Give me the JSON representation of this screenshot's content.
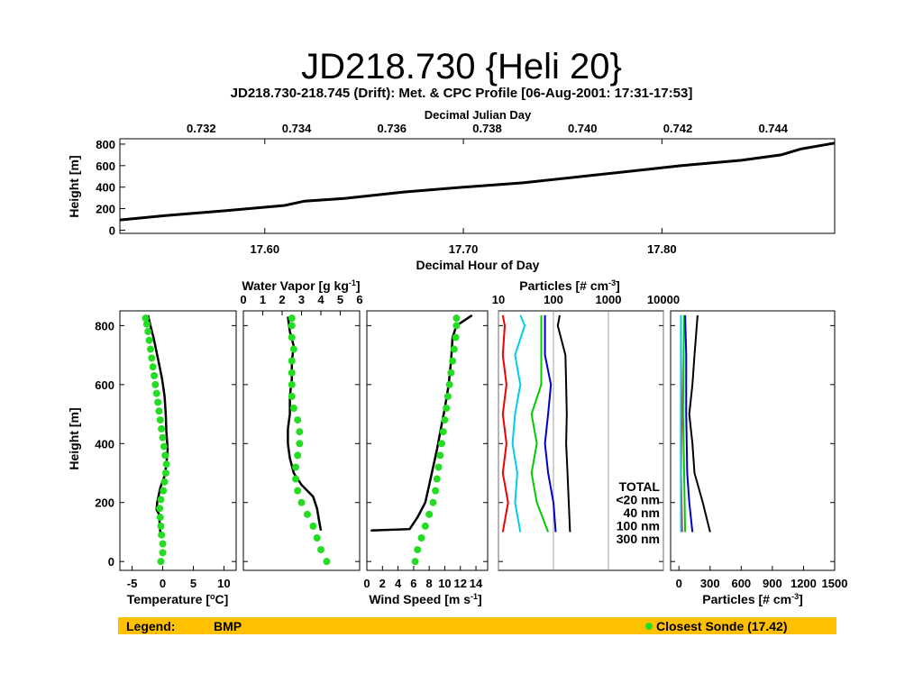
{
  "slide_title": "JD218.730 {Heli 20}",
  "figure_title": "JD218.730-218.745 (Drift): Met. & CPC Profile [06-Aug-2001: 17:31-17:53]",
  "legend_bar": {
    "label": "Legend:",
    "series": "BMP",
    "sonde": "Closest Sonde (17.42)",
    "bar_color": "#ffc000",
    "sonde_color": "#22dd22"
  },
  "chart_data": [
    {
      "type": "line",
      "name": "time-height",
      "xlabel": "Decimal Hour of Day",
      "x2label": "Decimal Julian Day",
      "ylabel": "Height [m]",
      "xlim": [
        17.527,
        17.887
      ],
      "ylim": [
        -30,
        850
      ],
      "xticks": [
        "17.60",
        "17.70",
        "17.80"
      ],
      "x2ticks": [
        "0.732",
        "0.734",
        "0.736",
        "0.738",
        "0.740",
        "0.742",
        "0.744"
      ],
      "yticks": [
        "0",
        "200",
        "400",
        "600",
        "800"
      ],
      "x": [
        17.527,
        17.55,
        17.58,
        17.61,
        17.62,
        17.64,
        17.67,
        17.7,
        17.73,
        17.76,
        17.79,
        17.81,
        17.84,
        17.86,
        17.87,
        17.887
      ],
      "y": [
        95,
        135,
        180,
        230,
        270,
        295,
        355,
        400,
        440,
        500,
        560,
        600,
        650,
        700,
        755,
        810
      ]
    },
    {
      "type": "line",
      "name": "temperature",
      "xlabel": "Temperature [°C]",
      "ylabel": "Height [m]",
      "xlim": [
        -7,
        12
      ],
      "ylim": [
        -30,
        850
      ],
      "xticks": [
        "-5",
        "0",
        "5",
        "10"
      ],
      "yticks": [
        "0",
        "200",
        "400",
        "600",
        "800"
      ],
      "series": [
        {
          "values": [
            [
              -0.4,
              100
            ],
            [
              -0.5,
              130
            ],
            [
              -0.6,
              160
            ],
            [
              -1.0,
              175
            ],
            [
              -0.9,
              200
            ],
            [
              -0.4,
              250
            ],
            [
              0.3,
              290
            ],
            [
              0.6,
              330
            ],
            [
              0.8,
              380
            ],
            [
              0.6,
              440
            ],
            [
              0.5,
              500
            ],
            [
              0.3,
              560
            ],
            [
              -0.1,
              620
            ],
            [
              -0.8,
              690
            ],
            [
              -1.5,
              760
            ],
            [
              -2.0,
              800
            ],
            [
              -2.4,
              835
            ]
          ]
        },
        {
          "values": [
            [
              -0.3,
              0
            ],
            [
              0.0,
              30
            ],
            [
              0.0,
              60
            ],
            [
              -0.2,
              90
            ],
            [
              -0.3,
              120
            ],
            [
              -0.4,
              150
            ],
            [
              -0.5,
              180
            ],
            [
              -0.3,
              210
            ],
            [
              0.1,
              240
            ],
            [
              0.3,
              270
            ],
            [
              0.5,
              300
            ],
            [
              0.6,
              330
            ],
            [
              0.4,
              360
            ],
            [
              0.2,
              390
            ],
            [
              0.0,
              420
            ],
            [
              -0.2,
              450
            ],
            [
              -0.4,
              480
            ],
            [
              -0.6,
              510
            ],
            [
              -0.8,
              540
            ],
            [
              -1.0,
              570
            ],
            [
              -1.2,
              600
            ],
            [
              -1.4,
              630
            ],
            [
              -1.6,
              660
            ],
            [
              -1.8,
              690
            ],
            [
              -2.0,
              720
            ],
            [
              -2.2,
              750
            ],
            [
              -2.4,
              780
            ],
            [
              -2.6,
              805
            ],
            [
              -2.8,
              825
            ]
          ]
        }
      ]
    },
    {
      "type": "line",
      "name": "water-vapor",
      "xlabel": "Water Vapor [g kg-1]",
      "ylabel": "",
      "xlim": [
        0,
        6
      ],
      "ylim": [
        -30,
        850
      ],
      "xticks": [
        "0",
        "1",
        "2",
        "3",
        "4",
        "5",
        "6"
      ],
      "series": [
        {
          "values": [
            [
              4.0,
              105
            ],
            [
              3.9,
              140
            ],
            [
              3.8,
              180
            ],
            [
              3.6,
              220
            ],
            [
              3.0,
              260
            ],
            [
              2.6,
              300
            ],
            [
              2.4,
              350
            ],
            [
              2.3,
              400
            ],
            [
              2.3,
              450
            ],
            [
              2.4,
              500
            ],
            [
              2.4,
              560
            ],
            [
              2.5,
              620
            ],
            [
              2.5,
              680
            ],
            [
              2.6,
              730
            ],
            [
              2.4,
              780
            ],
            [
              2.3,
              830
            ]
          ]
        },
        {
          "values": [
            [
              4.3,
              0
            ],
            [
              4.0,
              40
            ],
            [
              3.8,
              80
            ],
            [
              3.6,
              120
            ],
            [
              3.3,
              160
            ],
            [
              3.0,
              200
            ],
            [
              2.8,
              240
            ],
            [
              2.7,
              280
            ],
            [
              2.7,
              320
            ],
            [
              2.8,
              360
            ],
            [
              2.9,
              400
            ],
            [
              2.9,
              440
            ],
            [
              2.8,
              480
            ],
            [
              2.6,
              520
            ],
            [
              2.5,
              560
            ],
            [
              2.5,
              600
            ],
            [
              2.5,
              640
            ],
            [
              2.5,
              680
            ],
            [
              2.6,
              720
            ],
            [
              2.5,
              760
            ],
            [
              2.5,
              800
            ],
            [
              2.5,
              825
            ]
          ]
        }
      ]
    },
    {
      "type": "line",
      "name": "wind-speed",
      "xlabel": "Wind Speed [m s-1]",
      "ylabel": "",
      "xlim": [
        0,
        15.5
      ],
      "ylim": [
        -30,
        850
      ],
      "xticks": [
        "0",
        "2",
        "4",
        "6",
        "8",
        "10",
        "12",
        "14"
      ],
      "series": [
        {
          "values": [
            [
              0.5,
              105
            ],
            [
              5.5,
              110
            ],
            [
              6.5,
              150
            ],
            [
              7.5,
              200
            ],
            [
              8.0,
              260
            ],
            [
              8.5,
              320
            ],
            [
              9.0,
              380
            ],
            [
              9.5,
              450
            ],
            [
              10.0,
              520
            ],
            [
              10.5,
              600
            ],
            [
              10.8,
              680
            ],
            [
              11.0,
              760
            ],
            [
              11.5,
              800
            ],
            [
              13.5,
              835
            ]
          ]
        },
        {
          "values": [
            [
              6.2,
              0
            ],
            [
              6.5,
              40
            ],
            [
              7.0,
              80
            ],
            [
              7.5,
              120
            ],
            [
              8.0,
              160
            ],
            [
              8.5,
              200
            ],
            [
              8.8,
              240
            ],
            [
              9.0,
              280
            ],
            [
              9.2,
              320
            ],
            [
              9.4,
              360
            ],
            [
              9.6,
              400
            ],
            [
              9.8,
              440
            ],
            [
              10.0,
              480
            ],
            [
              10.2,
              520
            ],
            [
              10.4,
              560
            ],
            [
              10.6,
              600
            ],
            [
              10.8,
              640
            ],
            [
              11.0,
              680
            ],
            [
              11.2,
              720
            ],
            [
              11.4,
              760
            ],
            [
              11.5,
              800
            ],
            [
              11.5,
              825
            ]
          ]
        }
      ]
    },
    {
      "type": "line",
      "name": "particles-log",
      "xlabel": "",
      "x2label": "Particles [# cm-3]",
      "xlim": [
        10,
        10000
      ],
      "log_x": true,
      "ylim": [
        -30,
        850
      ],
      "x2ticks": [
        "10",
        "100",
        "1000",
        "10000"
      ],
      "series": [
        {
          "name": "TOTAL",
          "color": "#000000",
          "values": [
            [
              200,
              100
            ],
            [
              190,
              200
            ],
            [
              180,
              300
            ],
            [
              170,
              400
            ],
            [
              175,
              500
            ],
            [
              170,
              600
            ],
            [
              165,
              700
            ],
            [
              120,
              800
            ],
            [
              130,
              835
            ]
          ]
        },
        {
          "name": "<20 nm",
          "color": "#ee0000",
          "values": [
            [
              12,
              100
            ],
            [
              15,
              200
            ],
            [
              12,
              300
            ],
            [
              14,
              400
            ],
            [
              12,
              500
            ],
            [
              14,
              600
            ],
            [
              12,
              700
            ],
            [
              13,
              800
            ],
            [
              12,
              835
            ]
          ]
        },
        {
          "name": "40 nm",
          "color": "#00cc00",
          "values": [
            [
              80,
              100
            ],
            [
              50,
              200
            ],
            [
              40,
              300
            ],
            [
              50,
              400
            ],
            [
              40,
              500
            ],
            [
              60,
              600
            ],
            [
              60,
              700
            ],
            [
              60,
              835
            ]
          ]
        },
        {
          "name": "100 nm",
          "color": "#0000cc",
          "values": [
            [
              110,
              100
            ],
            [
              100,
              200
            ],
            [
              80,
              300
            ],
            [
              70,
              400
            ],
            [
              80,
              500
            ],
            [
              90,
              600
            ],
            [
              70,
              700
            ],
            [
              70,
              835
            ]
          ]
        },
        {
          "name": "300 nm",
          "color": "#00ccee",
          "values": [
            [
              25,
              100
            ],
            [
              20,
              200
            ],
            [
              22,
              300
            ],
            [
              18,
              400
            ],
            [
              20,
              500
            ],
            [
              25,
              600
            ],
            [
              20,
              700
            ],
            [
              30,
              800
            ],
            [
              25,
              835
            ]
          ]
        }
      ]
    },
    {
      "type": "line",
      "name": "particles-linear",
      "xlabel": "Particles [# cm-3]",
      "xlim": [
        -80,
        1500
      ],
      "ylim": [
        -30,
        850
      ],
      "xticks": [
        "0",
        "300",
        "600",
        "900",
        "1200",
        "1500"
      ],
      "series": [
        {
          "name": "TOTAL",
          "color": "#000000",
          "values": [
            [
              300,
              100
            ],
            [
              230,
              200
            ],
            [
              150,
              300
            ],
            [
              130,
              400
            ],
            [
              100,
              500
            ],
            [
              130,
              600
            ],
            [
              150,
              700
            ],
            [
              180,
              835
            ]
          ]
        },
        {
          "name": "<20 nm",
          "color": "#ee0000",
          "values": [
            [
              30,
              100
            ],
            [
              20,
              300
            ],
            [
              25,
              500
            ],
            [
              20,
              700
            ],
            [
              20,
              835
            ]
          ]
        },
        {
          "name": "40 nm",
          "color": "#00cc00",
          "values": [
            [
              60,
              100
            ],
            [
              50,
              300
            ],
            [
              40,
              500
            ],
            [
              45,
              700
            ],
            [
              50,
              835
            ]
          ]
        },
        {
          "name": "100 nm",
          "color": "#0000cc",
          "values": [
            [
              130,
              100
            ],
            [
              100,
              200
            ],
            [
              80,
              300
            ],
            [
              70,
              500
            ],
            [
              70,
              700
            ],
            [
              60,
              835
            ]
          ]
        },
        {
          "name": "300 nm",
          "color": "#00ccee",
          "values": [
            [
              20,
              100
            ],
            [
              18,
              400
            ],
            [
              20,
              835
            ]
          ]
        }
      ]
    }
  ]
}
